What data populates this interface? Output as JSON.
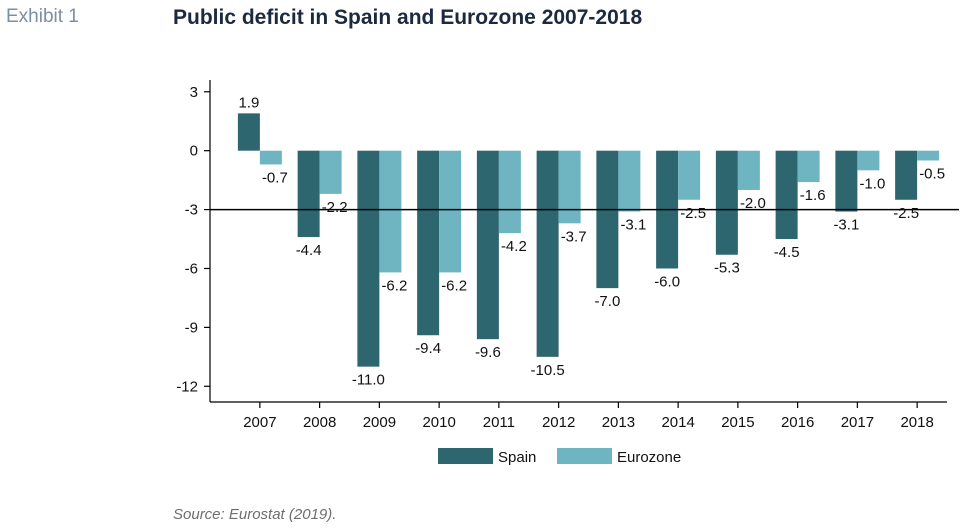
{
  "header": {
    "exhibit_label": "Exhibit 1",
    "title": "Public deficit in Spain and Eurozone 2007-2018"
  },
  "footer": {
    "source": "Source: Eurostat (2019)."
  },
  "colors": {
    "spain": "#2e6670",
    "eurozone": "#6fb4c1",
    "reference_line": "#000000"
  },
  "chart_data": {
    "type": "bar",
    "title": "Public deficit in Spain and Eurozone 2007-2018",
    "xlabel": "",
    "ylabel": "",
    "categories": [
      "2007",
      "2008",
      "2009",
      "2010",
      "2011",
      "2012",
      "2013",
      "2014",
      "2015",
      "2016",
      "2017",
      "2018"
    ],
    "series": [
      {
        "name": "Spain",
        "values": [
          1.9,
          -4.4,
          -11.0,
          -9.4,
          -9.6,
          -10.5,
          -7.0,
          -6.0,
          -5.3,
          -4.5,
          -3.1,
          -2.5
        ]
      },
      {
        "name": "Eurozone",
        "values": [
          -0.7,
          -2.2,
          -6.2,
          -6.2,
          -4.2,
          -3.7,
          -3.1,
          -2.5,
          -2.0,
          -1.6,
          -1.0,
          -0.5
        ]
      }
    ],
    "ylim": [
      -12.8,
      3.6
    ],
    "yticks": [
      3,
      0,
      -3,
      -6,
      -9,
      -12
    ],
    "reference_line": -3,
    "grid": false,
    "legend": "bottom-center"
  }
}
